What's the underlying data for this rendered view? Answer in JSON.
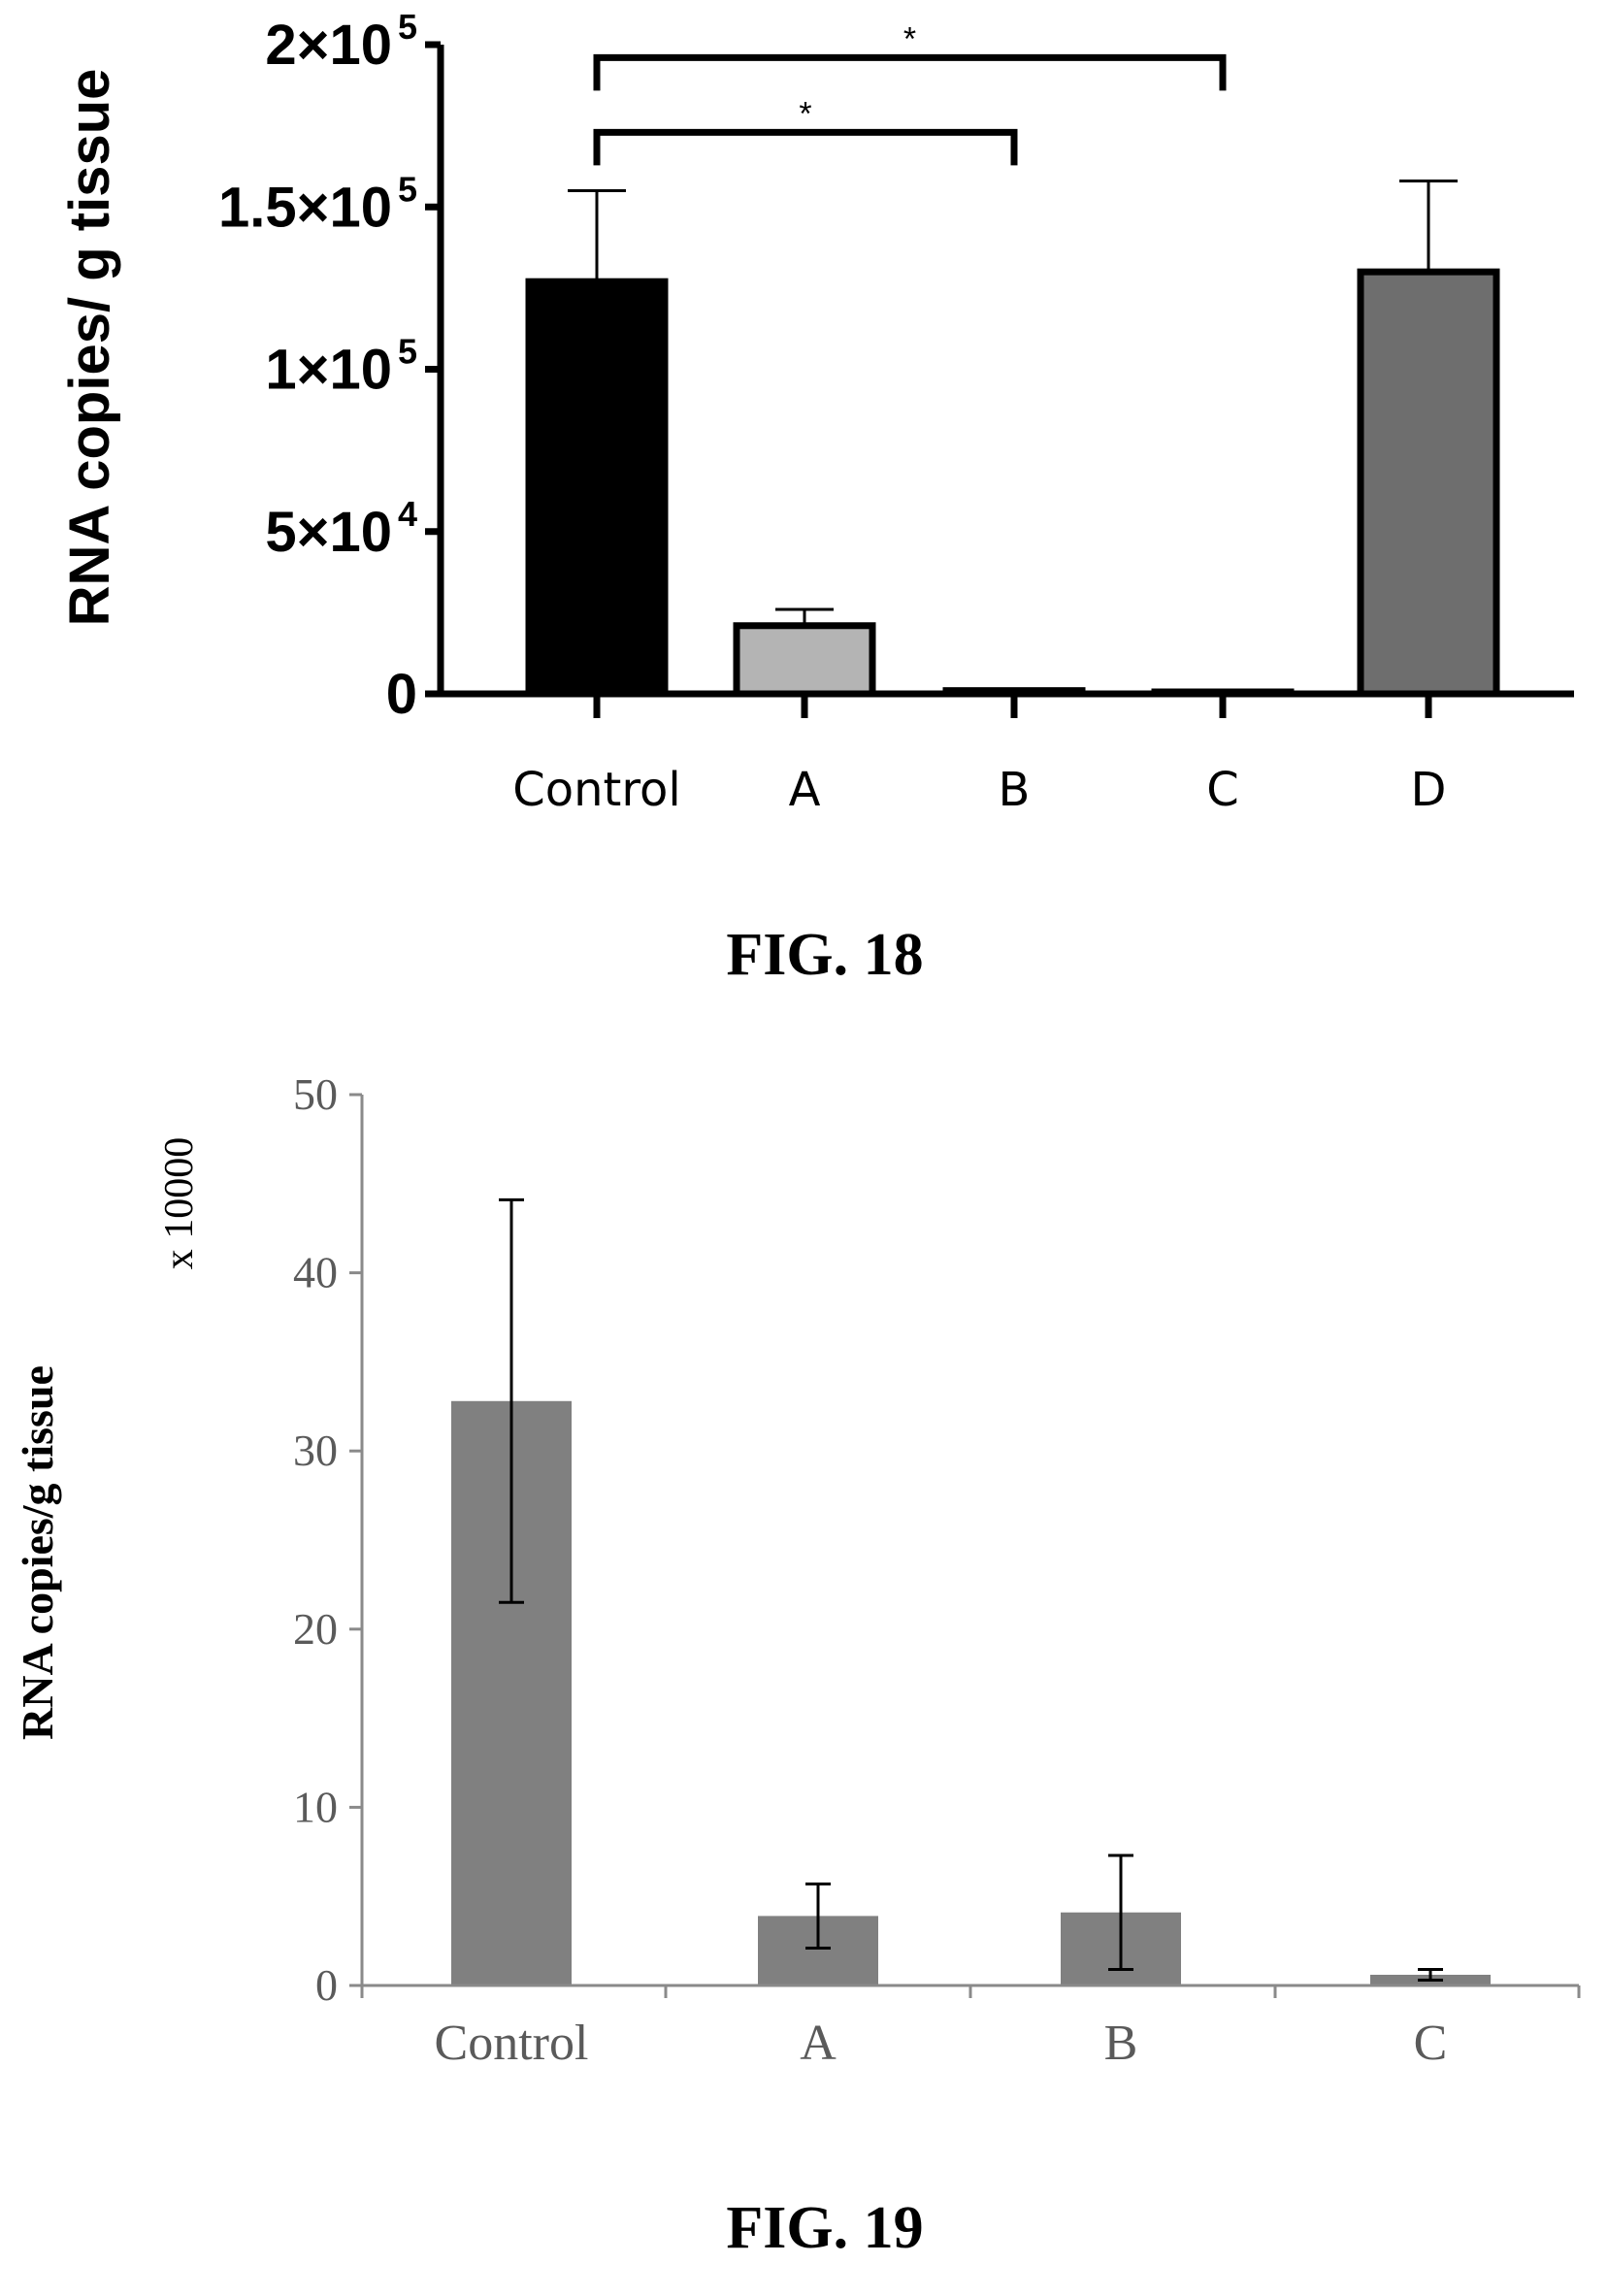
{
  "chart_data": [
    {
      "type": "bar",
      "figure_label": "FIG. 18",
      "ylabel": "RNA copies/ g tissue",
      "xlabel": "",
      "categories": [
        "Control",
        "A",
        "B",
        "C",
        "D"
      ],
      "values": [
        127000,
        21000,
        1000,
        500,
        130000
      ],
      "errors_upper": [
        28000,
        5000,
        0,
        0,
        28000
      ],
      "bar_fills": [
        "#000000",
        "#b4b4b4",
        "#808080",
        "#808080",
        "#6e6e6e"
      ],
      "ylim": [
        0,
        200000
      ],
      "y_ticks": [
        {
          "value": 0,
          "base": "0",
          "exp": ""
        },
        {
          "value": 50000,
          "base": "5×10",
          "exp": "4"
        },
        {
          "value": 100000,
          "base": "1×10",
          "exp": "5"
        },
        {
          "value": 150000,
          "base": "1.5×10",
          "exp": "5"
        },
        {
          "value": 200000,
          "base": "2×10",
          "exp": "5"
        }
      ],
      "significance": [
        {
          "from": "Control",
          "to": "C",
          "label": "*",
          "level": 196000
        },
        {
          "from": "Control",
          "to": "B",
          "label": "*",
          "level": 173000
        }
      ],
      "grid": false
    },
    {
      "type": "bar",
      "figure_label": "FIG. 19",
      "ylabel": "RNA copies/g tissue",
      "y_multiplier": "x 10000",
      "xlabel": "",
      "categories": [
        "Control",
        "A",
        "B",
        "C"
      ],
      "values": [
        32.8,
        3.9,
        4.1,
        0.6
      ],
      "errors": [
        11.3,
        1.8,
        3.2,
        0.3
      ],
      "bar_fill": "#808080",
      "ylim": [
        0,
        50
      ],
      "y_ticks": [
        "0",
        "10",
        "20",
        "30",
        "40",
        "50"
      ],
      "grid": false
    }
  ]
}
